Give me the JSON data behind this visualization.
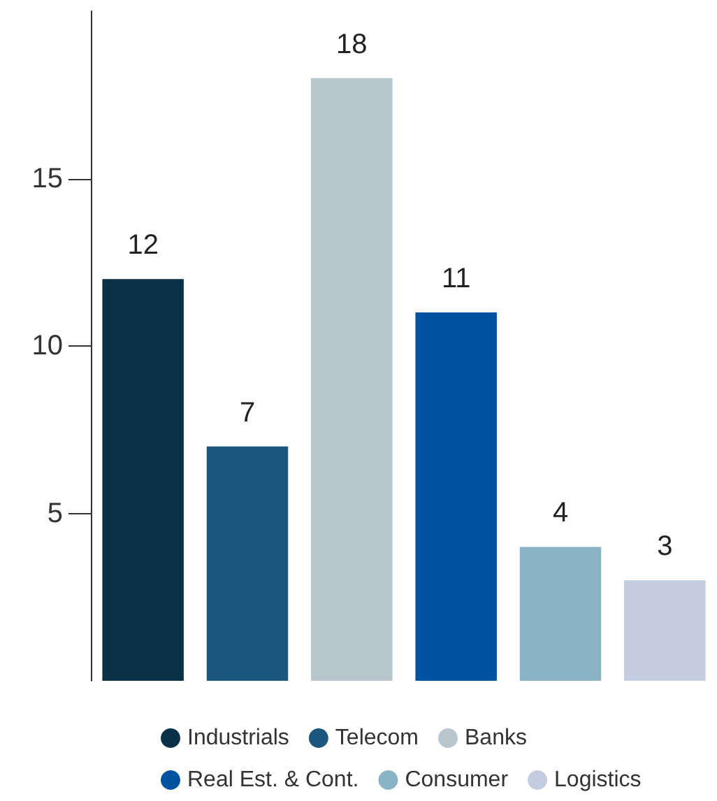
{
  "chart_data": {
    "type": "bar",
    "categories": [
      null,
      null,
      null,
      null,
      null,
      null
    ],
    "stacked": true,
    "series": [
      {
        "name": "Industrials",
        "color": "#0b3149",
        "values": [
          12,
          null,
          null,
          null,
          null,
          null
        ]
      },
      {
        "name": "Telecom",
        "color": "#1b567f",
        "values": [
          null,
          7,
          null,
          null,
          null,
          null
        ]
      },
      {
        "name": "Banks",
        "color": "#b6c6cc",
        "values": [
          null,
          null,
          18,
          null,
          null,
          null
        ]
      },
      {
        "name": "Real Est. & Cont.",
        "color": "#0053a0",
        "values": [
          null,
          null,
          null,
          11,
          null,
          null
        ]
      },
      {
        "name": "Consumer",
        "color": "#8ab4c6",
        "values": [
          null,
          null,
          null,
          null,
          4,
          null
        ]
      },
      {
        "name": "Logistics",
        "color": "#c4cddf",
        "values": [
          null,
          null,
          null,
          null,
          null,
          3
        ]
      }
    ],
    "ylim": [
      0,
      20
    ],
    "yticks": [
      5,
      10,
      15
    ],
    "grid": false,
    "legend": "bottom",
    "data_labels": true
  }
}
